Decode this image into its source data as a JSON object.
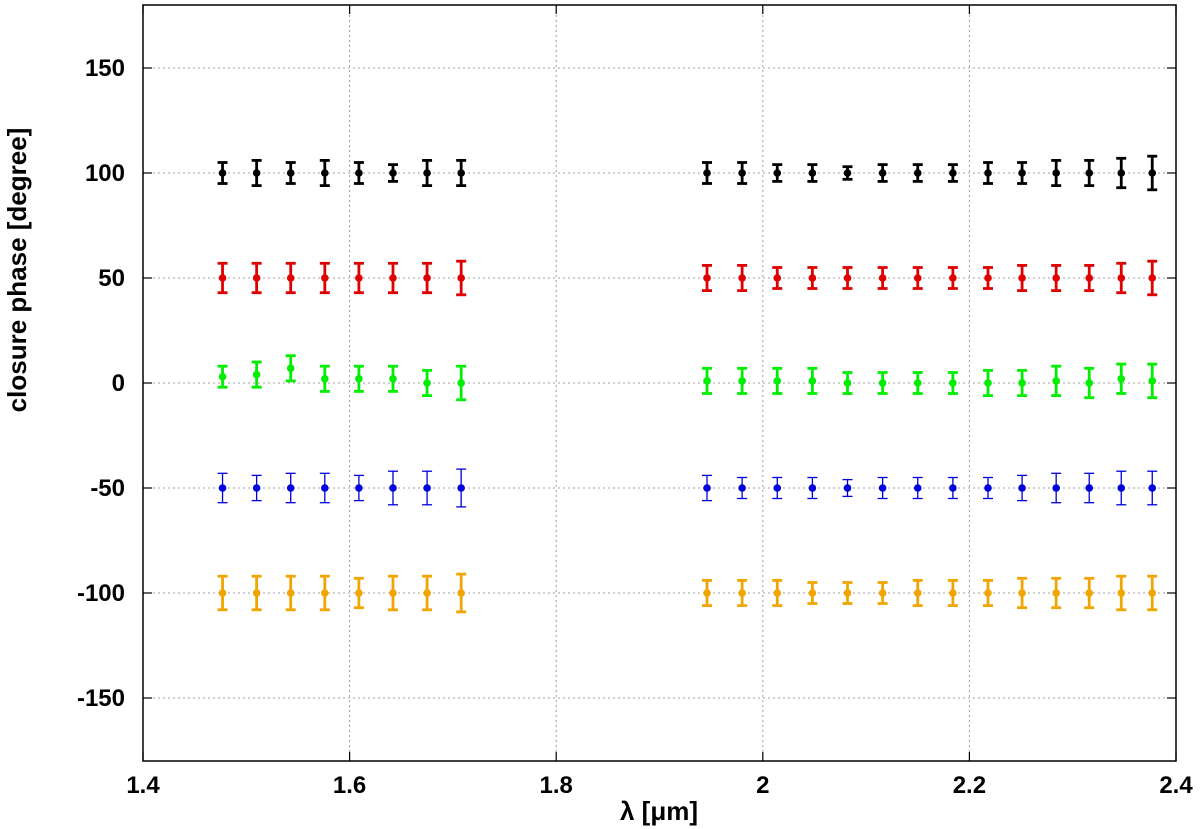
{
  "chart_data": {
    "type": "scatter",
    "xlabel": "λ [μm]",
    "ylabel": "closure phase [degree]",
    "xlim": [
      1.4,
      2.4
    ],
    "ylim": [
      -180,
      180
    ],
    "x_ticks": [
      1.4,
      1.6,
      1.8,
      2.0,
      2.2,
      2.4
    ],
    "x_tick_labels": [
      "1.4",
      "1.6",
      "1.8",
      "2",
      "2.2",
      "2.4"
    ],
    "y_ticks": [
      -150,
      -100,
      -50,
      0,
      50,
      100,
      150
    ],
    "y_tick_labels": [
      "-150",
      "-100",
      "-50",
      "0",
      "50",
      "100",
      "150"
    ],
    "grid": true,
    "legend": "none",
    "x": [
      1.477,
      1.51,
      1.543,
      1.576,
      1.609,
      1.642,
      1.675,
      1.708,
      1.946,
      1.98,
      2.014,
      2.048,
      2.082,
      2.116,
      2.15,
      2.184,
      2.218,
      2.251,
      2.284,
      2.316,
      2.347,
      2.377
    ],
    "series": [
      {
        "color": "#000000",
        "y": [
          100,
          100,
          100,
          100,
          100,
          100,
          100,
          100,
          100,
          100,
          100,
          100,
          100,
          100,
          100,
          100,
          100,
          100,
          100,
          100,
          100,
          100
        ],
        "err": [
          5,
          6,
          5,
          6,
          5,
          4,
          6,
          6,
          5,
          5,
          4,
          4,
          3,
          4,
          4,
          4,
          5,
          5,
          6,
          6,
          7,
          8
        ]
      },
      {
        "color": "#e00000",
        "y": [
          50,
          50,
          50,
          50,
          50,
          50,
          50,
          50,
          50,
          50,
          50,
          50,
          50,
          50,
          50,
          50,
          50,
          50,
          50,
          50,
          50,
          50
        ],
        "err": [
          7,
          7,
          7,
          7,
          7,
          7,
          7,
          8,
          6,
          6,
          5,
          5,
          5,
          5,
          5,
          5,
          5,
          6,
          6,
          6,
          7,
          8
        ]
      },
      {
        "color": "#00ee00",
        "y": [
          3,
          4,
          7,
          2,
          2,
          2,
          0,
          0,
          1,
          1,
          1,
          1,
          0,
          0,
          0,
          0,
          0,
          0,
          1,
          0,
          2,
          1
        ],
        "err": [
          5,
          6,
          6,
          6,
          6,
          6,
          6,
          8,
          6,
          6,
          6,
          6,
          5,
          5,
          5,
          5,
          6,
          6,
          7,
          7,
          7,
          8
        ]
      },
      {
        "color": "#0000dd",
        "y": [
          -50,
          -50,
          -50,
          -50,
          -50,
          -50,
          -50,
          -50,
          -50,
          -50,
          -50,
          -50,
          -50,
          -50,
          -50,
          -50,
          -50,
          -50,
          -50,
          -50,
          -50,
          -50
        ],
        "err": [
          7,
          6,
          7,
          7,
          6,
          8,
          8,
          9,
          6,
          5,
          5,
          5,
          4,
          5,
          5,
          5,
          5,
          6,
          7,
          7,
          8,
          8
        ]
      },
      {
        "color": "#f0a500",
        "y": [
          -100,
          -100,
          -100,
          -100,
          -100,
          -100,
          -100,
          -100,
          -100,
          -100,
          -100,
          -100,
          -100,
          -100,
          -100,
          -100,
          -100,
          -100,
          -100,
          -100,
          -100,
          -100
        ],
        "err": [
          8,
          8,
          8,
          8,
          7,
          8,
          8,
          9,
          6,
          6,
          6,
          5,
          5,
          5,
          6,
          6,
          6,
          7,
          7,
          7,
          8,
          8
        ]
      }
    ]
  }
}
